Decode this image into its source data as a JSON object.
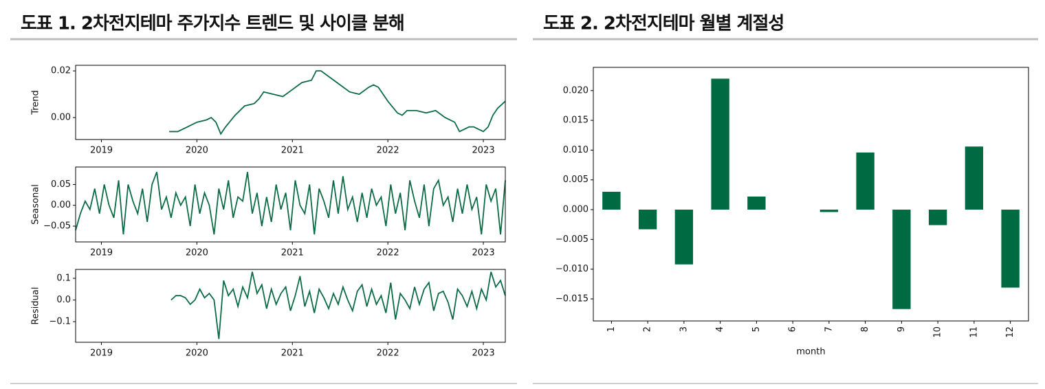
{
  "chart_data": [
    {
      "type": "line",
      "title": "도표 1. 2차전지테마 주가지수 트렌드 및 사이클 분해",
      "y_label": "Trend",
      "color": "#0b6b45",
      "x": [
        2019.71,
        2019.8,
        2019.9,
        2020.0,
        2020.1,
        2020.15,
        2020.2,
        2020.25,
        2020.3,
        2020.4,
        2020.5,
        2020.6,
        2020.65,
        2020.7,
        2020.8,
        2020.9,
        2021.0,
        2021.1,
        2021.2,
        2021.25,
        2021.3,
        2021.4,
        2021.5,
        2021.6,
        2021.7,
        2021.8,
        2021.85,
        2021.9,
        2022.0,
        2022.1,
        2022.15,
        2022.2,
        2022.3,
        2022.4,
        2022.5,
        2022.6,
        2022.65,
        2022.7,
        2022.75,
        2022.8,
        2022.85,
        2022.9,
        2022.95,
        2023.0,
        2023.05,
        2023.1,
        2023.15,
        2023.23
      ],
      "values": [
        -0.006,
        -0.006,
        -0.004,
        -0.002,
        -0.001,
        0.0,
        -0.002,
        -0.007,
        -0.004,
        0.001,
        0.005,
        0.006,
        0.008,
        0.011,
        0.01,
        0.009,
        0.012,
        0.015,
        0.016,
        0.02,
        0.02,
        0.017,
        0.014,
        0.011,
        0.01,
        0.013,
        0.014,
        0.013,
        0.007,
        0.002,
        0.001,
        0.003,
        0.003,
        0.002,
        0.003,
        0.0,
        -0.001,
        -0.002,
        -0.006,
        -0.005,
        -0.004,
        -0.004,
        -0.005,
        -0.006,
        -0.004,
        0.001,
        0.004,
        0.007
      ],
      "xlim": [
        2018.73,
        2023.23
      ],
      "xticks": [
        2019,
        2020,
        2021,
        2022,
        2023
      ],
      "ylim": [
        -0.0094,
        0.0224
      ],
      "yticks": [
        {
          "value": 0,
          "label": "0.00"
        },
        {
          "value": 0.02,
          "label": "0.02"
        }
      ]
    },
    {
      "type": "line",
      "y_label": "Seasonal",
      "color": "#0b6b45",
      "x": [
        2018.73,
        2018.78,
        2018.83,
        2018.88,
        2018.93,
        2018.98,
        2019.03,
        2019.08,
        2019.13,
        2019.18,
        2019.23,
        2019.28,
        2019.33,
        2019.38,
        2019.43,
        2019.48,
        2019.53,
        2019.58,
        2019.63,
        2019.68,
        2019.73,
        2019.78,
        2019.83,
        2019.88,
        2019.93,
        2019.98,
        2020.03,
        2020.08,
        2020.13,
        2020.18,
        2020.23,
        2020.28,
        2020.33,
        2020.38,
        2020.43,
        2020.48,
        2020.53,
        2020.58,
        2020.63,
        2020.68,
        2020.73,
        2020.78,
        2020.83,
        2020.88,
        2020.93,
        2020.98,
        2021.03,
        2021.08,
        2021.13,
        2021.18,
        2021.23,
        2021.28,
        2021.33,
        2021.38,
        2021.43,
        2021.48,
        2021.53,
        2021.58,
        2021.63,
        2021.68,
        2021.73,
        2021.78,
        2021.83,
        2021.88,
        2021.93,
        2021.98,
        2022.03,
        2022.08,
        2022.13,
        2022.18,
        2022.23,
        2022.28,
        2022.33,
        2022.38,
        2022.43,
        2022.48,
        2022.53,
        2022.58,
        2022.63,
        2022.68,
        2022.73,
        2022.78,
        2022.83,
        2022.88,
        2022.93,
        2022.98,
        2023.03,
        2023.08,
        2023.13,
        2023.18,
        2023.23
      ],
      "values": [
        -0.06,
        -0.02,
        0.01,
        -0.01,
        0.04,
        -0.02,
        0.05,
        0.0,
        -0.03,
        0.06,
        -0.07,
        0.05,
        0.01,
        -0.02,
        0.04,
        -0.04,
        0.05,
        0.08,
        -0.01,
        0.02,
        -0.03,
        0.03,
        0.0,
        0.02,
        -0.05,
        0.05,
        -0.02,
        0.03,
        0.0,
        -0.07,
        0.04,
        -0.01,
        0.06,
        -0.03,
        0.02,
        0.01,
        0.08,
        -0.02,
        0.03,
        -0.05,
        0.02,
        -0.04,
        0.05,
        -0.01,
        0.03,
        -0.06,
        0.06,
        0.0,
        -0.02,
        0.05,
        -0.07,
        0.04,
        0.01,
        -0.03,
        0.06,
        -0.02,
        0.07,
        -0.01,
        0.02,
        -0.04,
        0.03,
        -0.03,
        0.04,
        0.0,
        0.02,
        -0.05,
        0.05,
        -0.02,
        0.03,
        -0.06,
        0.06,
        0.01,
        -0.03,
        0.05,
        -0.05,
        0.04,
        0.06,
        0.0,
        0.02,
        -0.04,
        0.04,
        -0.02,
        0.05,
        -0.01,
        0.02,
        -0.07,
        0.05,
        0.01,
        0.04,
        -0.07,
        0.06
      ],
      "xlim": [
        2018.73,
        2023.23
      ],
      "xticks": [
        2019,
        2020,
        2021,
        2022,
        2023
      ],
      "ylim": [
        -0.088,
        0.092
      ],
      "yticks": [
        {
          "value": 0.05,
          "label": "0.05"
        },
        {
          "value": 0,
          "label": "0.00"
        },
        {
          "value": -0.05,
          "label": "−0.05"
        }
      ]
    },
    {
      "type": "line",
      "y_label": "Residual",
      "color": "#0b6b45",
      "x": [
        2019.73,
        2019.78,
        2019.83,
        2019.88,
        2019.93,
        2019.98,
        2020.03,
        2020.08,
        2020.13,
        2020.18,
        2020.23,
        2020.28,
        2020.33,
        2020.38,
        2020.43,
        2020.48,
        2020.53,
        2020.58,
        2020.63,
        2020.68,
        2020.73,
        2020.78,
        2020.83,
        2020.88,
        2020.93,
        2020.98,
        2021.03,
        2021.08,
        2021.13,
        2021.18,
        2021.23,
        2021.28,
        2021.33,
        2021.38,
        2021.43,
        2021.48,
        2021.53,
        2021.58,
        2021.63,
        2021.68,
        2021.73,
        2021.78,
        2021.83,
        2021.88,
        2021.93,
        2021.98,
        2022.03,
        2022.08,
        2022.13,
        2022.18,
        2022.23,
        2022.28,
        2022.33,
        2022.38,
        2022.43,
        2022.48,
        2022.53,
        2022.58,
        2022.63,
        2022.68,
        2022.73,
        2022.78,
        2022.83,
        2022.88,
        2022.93,
        2022.98,
        2023.03,
        2023.08,
        2023.13,
        2023.18,
        2023.23
      ],
      "values": [
        0.0,
        0.02,
        0.02,
        0.01,
        -0.02,
        0.0,
        0.05,
        0.01,
        0.03,
        0.0,
        -0.18,
        0.09,
        0.02,
        0.05,
        -0.03,
        0.06,
        0.01,
        0.13,
        0.03,
        0.07,
        -0.04,
        0.05,
        -0.02,
        0.03,
        0.06,
        -0.05,
        0.02,
        0.11,
        -0.03,
        0.04,
        -0.06,
        0.05,
        0.01,
        -0.04,
        0.03,
        -0.02,
        0.06,
        0.0,
        -0.05,
        0.04,
        0.07,
        -0.03,
        0.05,
        -0.02,
        0.02,
        -0.06,
        0.08,
        -0.09,
        0.03,
        0.0,
        -0.04,
        0.06,
        -0.02,
        0.05,
        0.08,
        -0.05,
        0.03,
        0.04,
        -0.01,
        -0.09,
        0.05,
        0.02,
        -0.03,
        0.04,
        -0.04,
        0.05,
        0.0,
        0.13,
        0.06,
        0.09,
        0.02
      ],
      "xlim": [
        2018.73,
        2023.23
      ],
      "xticks": [
        2019,
        2020,
        2021,
        2022,
        2023
      ],
      "ylim": [
        -0.195,
        0.141
      ],
      "yticks": [
        0.1,
        {
          "value": 0,
          "label": "0.0"
        },
        {
          "value": -0.1,
          "label": "−0.1"
        }
      ]
    },
    {
      "type": "bar",
      "title": "도표 2. 2차전지테마 월별 계절성",
      "x_label": "month",
      "color": "#006a42",
      "categories": [
        "1",
        "2",
        "3",
        "4",
        "5",
        "6",
        "7",
        "8",
        "9",
        "10",
        "11",
        "12"
      ],
      "values": [
        0.003,
        -0.0033,
        -0.0092,
        0.022,
        0.0022,
        0,
        -0.0004,
        0.0096,
        -0.0167,
        -0.0026,
        0.0106,
        -0.0131
      ],
      "ylim": [
        -0.0187,
        0.0239
      ],
      "yticks": [
        {
          "value": -0.015,
          "label": "−0.015"
        },
        {
          "value": -0.01,
          "label": "−0.010"
        },
        {
          "value": -0.005,
          "label": "−0.005"
        },
        {
          "value": 0,
          "label": "0.000"
        },
        {
          "value": 0.005,
          "label": "0.005"
        },
        {
          "value": 0.01,
          "label": "0.010"
        },
        {
          "value": 0.015,
          "label": "0.015"
        },
        {
          "value": 0.02,
          "label": "0.020"
        }
      ]
    }
  ]
}
